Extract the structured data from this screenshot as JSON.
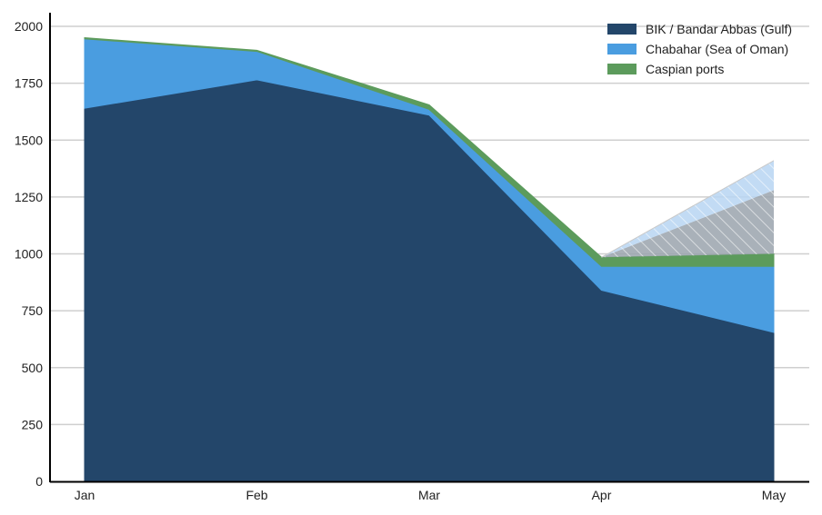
{
  "chart_data": {
    "type": "area",
    "stacked": true,
    "categories": [
      "Jan",
      "Feb",
      "Mar",
      "Apr",
      "May"
    ],
    "series": [
      {
        "name": "BIK / Bandar Abbas (Gulf)",
        "color": "#23466a",
        "values": [
          1640,
          1765,
          1610,
          840,
          655
        ]
      },
      {
        "name": "Chabahar (Sea of Oman)",
        "color": "#4a9de0",
        "values": [
          305,
          125,
          25,
          105,
          290
        ]
      },
      {
        "name": "Caspian ports",
        "color": "#5c9b5c",
        "values": [
          5,
          5,
          20,
          40,
          55
        ]
      }
    ],
    "projection_overlay": {
      "from_category": "Apr",
      "to_category": "May",
      "start_value": 985,
      "upper_values": [
        1280,
        1410
      ]
    },
    "y_ticks": [
      0,
      250,
      500,
      750,
      1000,
      1250,
      1500,
      1750,
      2000
    ],
    "ylim": [
      0,
      2060
    ],
    "title": "",
    "xlabel": "",
    "ylabel": "",
    "grid": true,
    "legend_position": "top-right"
  }
}
